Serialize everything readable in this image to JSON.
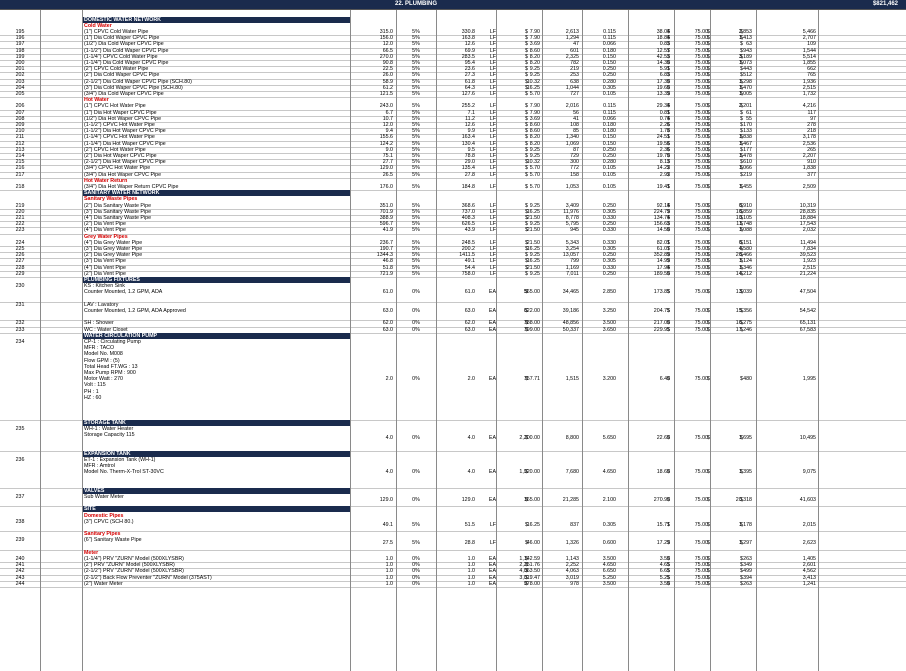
{
  "header": {
    "title": "22. PLUMBING",
    "total": "$821,462"
  },
  "rows": [
    {
      "t": "section",
      "label": "DOMESTIC WATER NETWORK"
    },
    {
      "t": "sub",
      "label": "Cold Water"
    },
    {
      "t": "item",
      "num": "195",
      "desc": "(1\") CPVC Cold Water Pipe",
      "qty": "315.0",
      "waste": "5%",
      "tqty": "330.8",
      "unit": "LF",
      "price": "7.90",
      "matl": "2,613",
      "rate": "0.115",
      "hours": "38.04",
      "lrate": "75.00",
      "labor": "2,853",
      "total": "5,466"
    },
    {
      "t": "item",
      "num": "196",
      "desc": "(1\") Dia Cold Waper CPVC Pipe",
      "qty": "156.0",
      "waste": "5%",
      "tqty": "163.8",
      "unit": "LF",
      "price": "7.90",
      "matl": "1,294",
      "rate": "0.115",
      "hours": "18.84",
      "lrate": "75.00",
      "labor": "1,413",
      "total": "2,707"
    },
    {
      "t": "item",
      "num": "197",
      "desc": "(1/2\") Dia Cold Waper CPVC Pipe",
      "qty": "12.0",
      "waste": "5%",
      "tqty": "12.6",
      "unit": "LF",
      "price": "3.69",
      "matl": "47",
      "rate": "0.066",
      "hours": "0.83",
      "lrate": "75.00",
      "labor": "63",
      "total": "109"
    },
    {
      "t": "item",
      "num": "198",
      "desc": "(1-1/2\") Dia Cold Waper CPVC Pipe",
      "qty": "66.5",
      "waste": "5%",
      "tqty": "69.9",
      "unit": "LF",
      "price": "8.60",
      "matl": "601",
      "rate": "0.180",
      "hours": "12.57",
      "lrate": "75.00",
      "labor": "943",
      "total": "1,544"
    },
    {
      "t": "item",
      "num": "199",
      "desc": "(1-1/4\") CPVC Cold Water Pipe",
      "qty": "270.0",
      "waste": "5%",
      "tqty": "283.5",
      "unit": "LF",
      "price": "8.20",
      "matl": "2,325",
      "rate": "0.150",
      "hours": "42.53",
      "lrate": "75.00",
      "labor": "3,189",
      "total": "5,514"
    },
    {
      "t": "item",
      "num": "200",
      "desc": "(1-1/4\") Dia Cold Waper CPVC Pipe",
      "qty": "90.8",
      "waste": "5%",
      "tqty": "95.4",
      "unit": "LF",
      "price": "8.20",
      "matl": "782",
      "rate": "0.150",
      "hours": "14.30",
      "lrate": "75.00",
      "labor": "1,073",
      "total": "1,855"
    },
    {
      "t": "item",
      "num": "201",
      "desc": "(2\") CPVC Cold Water Pipe",
      "qty": "22.5",
      "waste": "5%",
      "tqty": "23.6",
      "unit": "LF",
      "price": "9.25",
      "matl": "219",
      "rate": "0.250",
      "hours": "5.91",
      "lrate": "75.00",
      "labor": "443",
      "total": "662"
    },
    {
      "t": "item",
      "num": "202",
      "desc": "(2\") Dia Cold Waper CPVC Pipe",
      "qty": "26.0",
      "waste": "5%",
      "tqty": "27.3",
      "unit": "LF",
      "price": "9.25",
      "matl": "253",
      "rate": "0.250",
      "hours": "6.83",
      "lrate": "75.00",
      "labor": "512",
      "total": "765"
    },
    {
      "t": "item",
      "num": "203",
      "desc": "(2-1/2\") Dia Cold Waper CPVC Pipe (SCH.80)",
      "qty": "58.9",
      "waste": "5%",
      "tqty": "61.8",
      "unit": "LF",
      "price": "10.32",
      "matl": "638",
      "rate": "0.280",
      "hours": "17.30",
      "lrate": "75.00",
      "labor": "1,298",
      "total": "1,936"
    },
    {
      "t": "item",
      "num": "204",
      "desc": "(3\") Dia Cold Waper CPVC Pipe (SCH.80)",
      "qty": "61.2",
      "waste": "5%",
      "tqty": "64.3",
      "unit": "LF",
      "price": "16.25",
      "matl": "1,044",
      "rate": "0.305",
      "hours": "19.60",
      "lrate": "75.00",
      "labor": "1,470",
      "total": "2,515"
    },
    {
      "t": "item",
      "num": "205",
      "desc": "(3/4\") Dia Cold Waper CPVC Pipe",
      "qty": "121.5",
      "waste": "5%",
      "tqty": "127.6",
      "unit": "LF",
      "price": "5.70",
      "matl": "727",
      "rate": "0.105",
      "hours": "13.39",
      "lrate": "75.00",
      "labor": "1,005",
      "total": "1,732"
    },
    {
      "t": "sub",
      "label": "Hot Water"
    },
    {
      "t": "item",
      "num": "206",
      "desc": "(1\") CPVC Hot Water Pipe",
      "qty": "243.0",
      "waste": "5%",
      "tqty": "255.2",
      "unit": "LF",
      "price": "7.90",
      "matl": "2,016",
      "rate": "0.115",
      "hours": "29.34",
      "lrate": "75.00",
      "labor": "2,201",
      "total": "4,216"
    },
    {
      "t": "item",
      "num": "207",
      "desc": "(1\") Dia Hot Waper CPVC Pipe",
      "qty": "6.7",
      "waste": "5%",
      "tqty": "7.1",
      "unit": "LF",
      "price": "7.90",
      "matl": "56",
      "rate": "0.115",
      "hours": "0.81",
      "lrate": "75.00",
      "labor": "61",
      "total": "117"
    },
    {
      "t": "item",
      "num": "208",
      "desc": "(1/2\") Dia Hot Waper CPVC Pipe",
      "qty": "10.7",
      "waste": "5%",
      "tqty": "11.2",
      "unit": "LF",
      "price": "3.69",
      "matl": "41",
      "rate": "0.066",
      "hours": "0.74",
      "lrate": "75.00",
      "labor": "55",
      "total": "97"
    },
    {
      "t": "item",
      "num": "209",
      "desc": "(1-1/2\") CPVC Hot Water Pipe",
      "qty": "12.0",
      "waste": "5%",
      "tqty": "12.6",
      "unit": "LF",
      "price": "8.60",
      "matl": "108",
      "rate": "0.180",
      "hours": "2.26",
      "lrate": "75.00",
      "labor": "170",
      "total": "278"
    },
    {
      "t": "item",
      "num": "210",
      "desc": "(1-1/2\") Dia Hot Waper CPVC Pipe",
      "qty": "9.4",
      "waste": "5%",
      "tqty": "9.9",
      "unit": "LF",
      "price": "8.60",
      "matl": "85",
      "rate": "0.180",
      "hours": "1.78",
      "lrate": "75.00",
      "labor": "133",
      "total": "218"
    },
    {
      "t": "item",
      "num": "211",
      "desc": "(1-1/4\") CPVC Hot Water Pipe",
      "qty": "155.6",
      "waste": "5%",
      "tqty": "163.4",
      "unit": "LF",
      "price": "8.20",
      "matl": "1,340",
      "rate": "0.150",
      "hours": "24.51",
      "lrate": "75.00",
      "labor": "1,838",
      "total": "3,178"
    },
    {
      "t": "item",
      "num": "212",
      "desc": "(1-1/4\") Dia Hot Waper CPVC Pipe",
      "qty": "124.2",
      "waste": "5%",
      "tqty": "130.4",
      "unit": "LF",
      "price": "8.20",
      "matl": "1,069",
      "rate": "0.150",
      "hours": "19.56",
      "lrate": "75.00",
      "labor": "1,467",
      "total": "2,536"
    },
    {
      "t": "item",
      "num": "213",
      "desc": "(2\") CPVC Hot Water Pipe",
      "qty": "9.0",
      "waste": "5%",
      "tqty": "9.5",
      "unit": "LF",
      "price": "9.25",
      "matl": "87",
      "rate": "0.250",
      "hours": "2.36",
      "lrate": "75.00",
      "labor": "177",
      "total": "265"
    },
    {
      "t": "item",
      "num": "214",
      "desc": "(2\") Dia Hot Waper CPVC Pipe",
      "qty": "75.1",
      "waste": "5%",
      "tqty": "78.8",
      "unit": "LF",
      "price": "9.25",
      "matl": "729",
      "rate": "0.250",
      "hours": "19.70",
      "lrate": "75.00",
      "labor": "1,478",
      "total": "2,207"
    },
    {
      "t": "item",
      "num": "215",
      "desc": "(2-1/2\") Dia Hot Waper CPVC Pipe",
      "qty": "27.7",
      "waste": "5%",
      "tqty": "29.0",
      "unit": "LF",
      "price": "10.32",
      "matl": "300",
      "rate": "0.280",
      "hours": "8.13",
      "lrate": "75.00",
      "labor": "610",
      "total": "910"
    },
    {
      "t": "item",
      "num": "216",
      "desc": "(3/4\") CPVC Hot Water Pipe",
      "qty": "129.0",
      "waste": "5%",
      "tqty": "135.4",
      "unit": "LF",
      "price": "5.70",
      "matl": "772",
      "rate": "0.105",
      "hours": "14.22",
      "lrate": "75.00",
      "labor": "1,066",
      "total": "1,838"
    },
    {
      "t": "item",
      "num": "217",
      "desc": "(3/4\") Dia Hot Waper CPVC Pipe",
      "qty": "26.5",
      "waste": "5%",
      "tqty": "27.8",
      "unit": "LF",
      "price": "5.70",
      "matl": "158",
      "rate": "0.105",
      "hours": "2.92",
      "lrate": "75.00",
      "labor": "219",
      "total": "377"
    },
    {
      "t": "sub",
      "label": "Hot Water Return"
    },
    {
      "t": "item",
      "num": "218",
      "desc": "(3/4\") Dia Hot Waper Return CPVC Pipe",
      "qty": "176.0",
      "waste": "5%",
      "tqty": "184.8",
      "unit": "LF",
      "price": "5.70",
      "matl": "1,053",
      "rate": "0.105",
      "hours": "19.41",
      "lrate": "75.00",
      "labor": "1,455",
      "total": "2,509"
    },
    {
      "t": "section",
      "label": "SANITARY WATER NETWORK"
    },
    {
      "t": "sub",
      "label": "Sanitary Waste Pipes"
    },
    {
      "t": "item",
      "num": "219",
      "desc": "(2\") Dia Sanitary Waste Pipe",
      "qty": "351.0",
      "waste": "5%",
      "tqty": "368.6",
      "unit": "LF",
      "price": "9.25",
      "matl": "3,409",
      "rate": "0.250",
      "hours": "92.14",
      "lrate": "75.00",
      "labor": "6,910",
      "total": "10,319"
    },
    {
      "t": "item",
      "num": "220",
      "desc": "(3\") Dia Sanitary Waste Pipe",
      "qty": "701.9",
      "waste": "5%",
      "tqty": "737.0",
      "unit": "LF",
      "price": "16.25",
      "matl": "11,976",
      "rate": "0.305",
      "hours": "224.79",
      "lrate": "75.00",
      "labor": "16,859",
      "total": "28,835"
    },
    {
      "t": "item",
      "num": "221",
      "desc": "(4\") Dia Sanitary Waste Pipe",
      "qty": "388.9",
      "waste": "5%",
      "tqty": "408.3",
      "unit": "LF",
      "price": "21.50",
      "matl": "8,778",
      "rate": "0.330",
      "hours": "134.74",
      "lrate": "75.00",
      "labor": "10,105",
      "total": "18,884"
    },
    {
      "t": "item",
      "num": "222",
      "desc": "(2\") Dia Vent Pipe",
      "qty": "596.7",
      "waste": "5%",
      "tqty": "626.5",
      "unit": "LF",
      "price": "9.25",
      "matl": "5,795",
      "rate": "0.250",
      "hours": "156.63",
      "lrate": "75.00",
      "labor": "11,748",
      "total": "17,543"
    },
    {
      "t": "item",
      "num": "223",
      "desc": "(4\") Dia Vent Pipe",
      "qty": "41.9",
      "waste": "5%",
      "tqty": "43.9",
      "unit": "LF",
      "price": "21.50",
      "matl": "945",
      "rate": "0.330",
      "hours": "14.50",
      "lrate": "75.00",
      "labor": "1,088",
      "total": "2,032"
    },
    {
      "t": "sub",
      "label": "Grey Water Pipes"
    },
    {
      "t": "item",
      "num": "224",
      "desc": "(4\") Dia Grey Water Pipe",
      "qty": "236.7",
      "waste": "5%",
      "tqty": "248.5",
      "unit": "LF",
      "price": "21.50",
      "matl": "5,343",
      "rate": "0.330",
      "hours": "82.01",
      "lrate": "75.00",
      "labor": "6,151",
      "total": "11,494"
    },
    {
      "t": "item",
      "num": "225",
      "desc": "(3\") Dia Grey Water Pipe",
      "qty": "190.7",
      "waste": "5%",
      "tqty": "200.2",
      "unit": "LF",
      "price": "16.25",
      "matl": "3,254",
      "rate": "0.305",
      "hours": "61.07",
      "lrate": "75.00",
      "labor": "4,580",
      "total": "7,834"
    },
    {
      "t": "item",
      "num": "226",
      "desc": "(2\") Dia Grey Water Pipe",
      "qty": "1344.3",
      "waste": "5%",
      "tqty": "1411.5",
      "unit": "LF",
      "price": "9.25",
      "matl": "13,057",
      "rate": "0.250",
      "hours": "352.89",
      "lrate": "75.00",
      "labor": "26,466",
      "total": "39,523"
    },
    {
      "t": "item",
      "num": "227",
      "desc": "(3\") Dia Vent Pipe",
      "qty": "46.8",
      "waste": "5%",
      "tqty": "49.1",
      "unit": "LF",
      "price": "16.25",
      "matl": "799",
      "rate": "0.305",
      "hours": "14.99",
      "lrate": "75.00",
      "labor": "1,124",
      "total": "1,923"
    },
    {
      "t": "item",
      "num": "228",
      "desc": "(4\") Dia Vent Pipe",
      "qty": "51.8",
      "waste": "5%",
      "tqty": "54.4",
      "unit": "LF",
      "price": "21.50",
      "matl": "1,169",
      "rate": "0.330",
      "hours": "17.94",
      "lrate": "75.00",
      "labor": "1,346",
      "total": "2,515"
    },
    {
      "t": "item",
      "num": "229",
      "desc": "(2\") Dia Vent Pipe",
      "qty": "721.9",
      "waste": "5%",
      "tqty": "758.0",
      "unit": "LF",
      "price": "9.25",
      "matl": "7,011",
      "rate": "0.250",
      "hours": "189.50",
      "lrate": "75.00",
      "labor": "14,212",
      "total": "21,224"
    },
    {
      "t": "section",
      "label": "PLUMBING FIXTURES"
    },
    {
      "t": "item",
      "num": "230",
      "lines": 3,
      "desc": "KS : Kitchen Sink\nCounter Mounted, 1.2 GPM, ADA",
      "qty": "61.0",
      "waste": "0%",
      "tqty": "61.0",
      "unit": "EA",
      "price": "565.00",
      "matl": "34,465",
      "rate": "2.850",
      "hours": "173.85",
      "lrate": "75.00",
      "labor": "13,039",
      "total": "47,504"
    },
    {
      "t": "item",
      "num": "231",
      "lines": 3,
      "desc": "LAV : Lavatory\nCounter Mounted, 1.2 GPM, ADA Approved",
      "qty": "63.0",
      "waste": "0%",
      "tqty": "63.0",
      "unit": "EA",
      "price": "622.00",
      "matl": "39,186",
      "rate": "3.250",
      "hours": "204.75",
      "lrate": "75.00",
      "labor": "15,356",
      "total": "54,542"
    },
    {
      "t": "item",
      "num": "232",
      "desc": "SH : Shower",
      "qty": "62.0",
      "waste": "0%",
      "tqty": "62.0",
      "unit": "EA",
      "price": "788.00",
      "matl": "48,856",
      "rate": "3.500",
      "hours": "217.00",
      "lrate": "75.00",
      "labor": "16,275",
      "total": "65,131"
    },
    {
      "t": "item",
      "num": "233",
      "desc": "WC : Water Closet",
      "qty": "63.0",
      "waste": "0%",
      "tqty": "63.0",
      "unit": "EA",
      "price": "799.00",
      "matl": "50,337",
      "rate": "3.650",
      "hours": "229.95",
      "lrate": "75.00",
      "labor": "17,246",
      "total": "67,583"
    },
    {
      "t": "section",
      "label": "WATER CIRCULATION PUMP"
    },
    {
      "t": "item",
      "num": "234",
      "lines": 13,
      "desc": "CP-1 : Circulating Pump\nMFR : TACO\nModel No. M008\nFlow GPM : (5)\nTotal Head FT.WG : 13\nMax Pump RPM : 900\nMotor Watt : 270\nVolt : 115\nPH : 1\nHZ : 60",
      "qty": "2.0",
      "waste": "0%",
      "tqty": "2.0",
      "unit": "EA",
      "price": "757.71",
      "matl": "1,515",
      "rate": "3.200",
      "hours": "6.40",
      "lrate": "75.00",
      "labor": "480",
      "total": "1,995"
    },
    {
      "t": "section",
      "label": "STORAGE TANK"
    },
    {
      "t": "item",
      "num": "235",
      "lines": 4,
      "desc": "WH-1 : Water Heater\nStorage Capacity 115",
      "qty": "4.0",
      "waste": "0%",
      "tqty": "4.0",
      "unit": "EA",
      "price": "2,200.00",
      "matl": "8,800",
      "rate": "5.650",
      "hours": "22.60",
      "lrate": "75.00",
      "labor": "1,695",
      "total": "10,495"
    },
    {
      "t": "section",
      "label": "EXPANSION TANK"
    },
    {
      "t": "item",
      "num": "236",
      "lines": 5,
      "desc": "ET-1 : Expansion Tank (WH-1)\nMFR : Amtrol\nModel No. Therm-X-Trol ST-30VC",
      "qty": "4.0",
      "waste": "0%",
      "tqty": "4.0",
      "unit": "EA",
      "price": "1,920.00",
      "matl": "7,680",
      "rate": "4.650",
      "hours": "18.60",
      "lrate": "75.00",
      "labor": "1,395",
      "total": "9,075"
    },
    {
      "t": "section",
      "label": "VALVES"
    },
    {
      "t": "item",
      "num": "237",
      "lines": 2,
      "desc": "Sub Water Meter",
      "qty": "129.0",
      "waste": "0%",
      "tqty": "129.0",
      "unit": "EA",
      "price": "165.00",
      "matl": "21,285",
      "rate": "2.100",
      "hours": "270.90",
      "lrate": "75.00",
      "labor": "20,318",
      "total": "41,603"
    },
    {
      "t": "section",
      "label": "SITE"
    },
    {
      "t": "sub",
      "label": "Domestic Pipes"
    },
    {
      "t": "item",
      "num": "238",
      "lines": 2,
      "desc": "(3\") CPVC (SCH 80.)",
      "qty": "49.1",
      "waste": "5%",
      "tqty": "51.5",
      "unit": "LF",
      "price": "16.25",
      "matl": "837",
      "rate": "0.305",
      "hours": "15.71",
      "lrate": "75.00",
      "labor": "1,178",
      "total": "2,015"
    },
    {
      "t": "sub",
      "label": "Sanitary Pipes"
    },
    {
      "t": "item",
      "num": "239",
      "lines": 2,
      "desc": "(6\") Sanitary Waste Pipe",
      "qty": "27.5",
      "waste": "5%",
      "tqty": "28.8",
      "unit": "LF",
      "price": "46.00",
      "matl": "1,326",
      "rate": "0.600",
      "hours": "17.29",
      "lrate": "75.00",
      "labor": "1,297",
      "total": "2,623"
    },
    {
      "t": "sub",
      "label": "Meter"
    },
    {
      "t": "item",
      "num": "240",
      "desc": "(1-1/4\") PRV \"ZURN\" Model (500XLYSBR)",
      "qty": "1.0",
      "waste": "0%",
      "tqty": "1.0",
      "unit": "EA",
      "price": "1,142.59",
      "matl": "1,143",
      "rate": "3.500",
      "hours": "3.50",
      "lrate": "75.00",
      "labor": "263",
      "total": "1,405"
    },
    {
      "t": "item",
      "num": "241",
      "desc": "(2\") PRV \"ZURN\" Model (500XLYSBR)",
      "qty": "1.0",
      "waste": "0%",
      "tqty": "1.0",
      "unit": "EA",
      "price": "2,251.76",
      "matl": "2,252",
      "rate": "4.650",
      "hours": "4.65",
      "lrate": "75.00",
      "labor": "349",
      "total": "2,601"
    },
    {
      "t": "item",
      "num": "242",
      "desc": "(2-1/2\") PRV \"ZURN\" Model (500XLYSBR)",
      "qty": "1.0",
      "waste": "0%",
      "tqty": "1.0",
      "unit": "EA",
      "price": "4,063.50",
      "matl": "4,063",
      "rate": "6.650",
      "hours": "6.65",
      "lrate": "75.00",
      "labor": "499",
      "total": "4,562"
    },
    {
      "t": "item",
      "num": "243",
      "desc": "(2-1/2\") Back Flow Preventer \"ZURN\" Model (375AST)",
      "qty": "1.0",
      "waste": "0%",
      "tqty": "1.0",
      "unit": "EA",
      "price": "3,019.47",
      "matl": "3,019",
      "rate": "5.250",
      "hours": "5.25",
      "lrate": "75.00",
      "labor": "394",
      "total": "3,413"
    },
    {
      "t": "item",
      "num": "244",
      "desc": "(2\") Water Meter",
      "qty": "1.0",
      "waste": "0%",
      "tqty": "1.0",
      "unit": "EA",
      "price": "978.00",
      "matl": "978",
      "rate": "3.500",
      "hours": "3.50",
      "lrate": "75.00",
      "labor": "263",
      "total": "1,241"
    }
  ]
}
